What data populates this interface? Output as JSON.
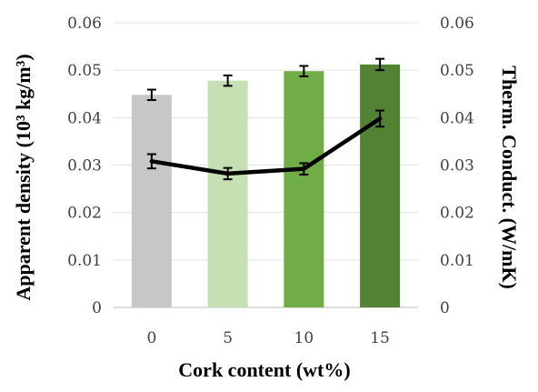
{
  "chart_data": {
    "type": "bar+line",
    "title": "",
    "xlabel": "Cork content (wt%)",
    "ylabel_left": "Apparent density (10³ kg/m³)",
    "ylabel_right": "Therm. Conduct. (W/mK)",
    "categories": [
      "0",
      "5",
      "10",
      "15"
    ],
    "ylim_left": [
      0,
      0.06
    ],
    "ylim_right": [
      0,
      0.06
    ],
    "yticks_left": [
      "0",
      "0.01",
      "0.02",
      "0.03",
      "0.04",
      "0.05",
      "0.06"
    ],
    "yticks_right": [
      "0",
      "0.01",
      "0.02",
      "0.03",
      "0.04",
      "0.05",
      "0.06"
    ],
    "grid": true,
    "legend": "none",
    "bars": {
      "axis": "left",
      "values": [
        0.0448,
        0.0478,
        0.0498,
        0.0512
      ],
      "errors": [
        0.0011,
        0.0011,
        0.0011,
        0.0012
      ],
      "colors": [
        "#c7c7c7",
        "#c6e0b4",
        "#70ad47",
        "#548235"
      ]
    },
    "line": {
      "axis": "right",
      "values": [
        0.0308,
        0.0282,
        0.0292,
        0.0398
      ],
      "errors": [
        0.0015,
        0.0012,
        0.0012,
        0.0017
      ],
      "color": "#000000"
    }
  }
}
